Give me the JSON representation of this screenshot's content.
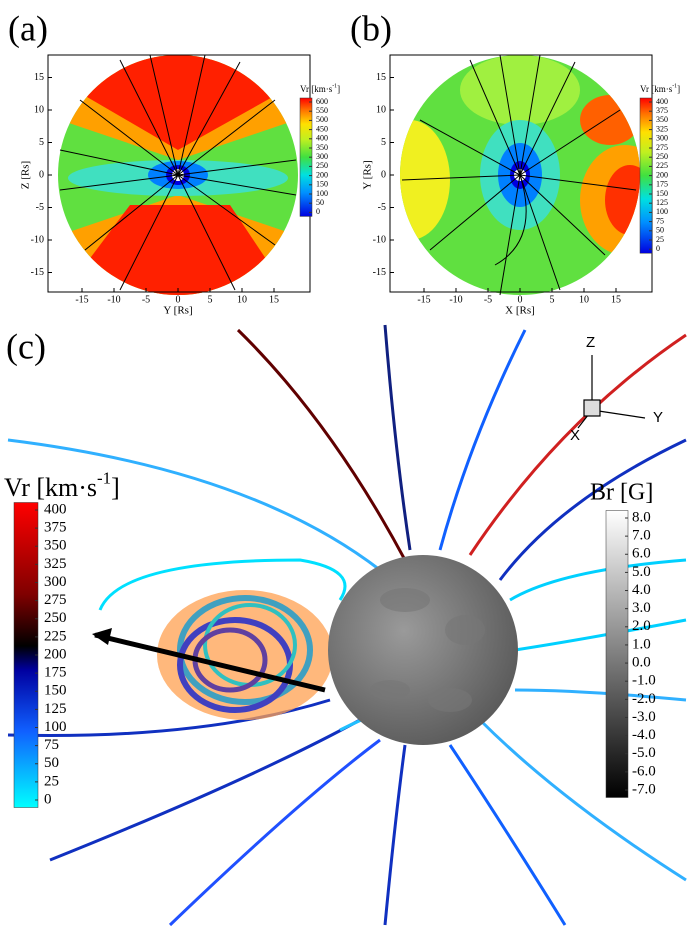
{
  "panels": [
    {
      "label": "(a)",
      "x_label": "Y [Rs]",
      "y_label": "Z [Rs]",
      "xticks": [
        -15,
        -10,
        -5,
        0,
        5,
        10,
        15
      ],
      "yticks": [
        -15,
        -10,
        -5,
        0,
        5,
        10,
        15
      ],
      "colorbar": {
        "title": "Vr [km·s",
        "title_sup": "-1",
        "title_end": "]",
        "ticks": [
          600,
          550,
          500,
          450,
          400,
          350,
          300,
          250,
          200,
          150,
          100,
          50,
          0
        ]
      }
    },
    {
      "label": "(b)",
      "x_label": "X [Rs]",
      "y_label": "Y [Rs]",
      "xticks": [
        -15,
        -10,
        -5,
        0,
        5,
        10,
        15
      ],
      "yticks": [
        -15,
        -10,
        -5,
        0,
        5,
        10,
        15
      ],
      "colorbar": {
        "title": "Vr [km·s",
        "title_sup": "-1",
        "title_end": "]",
        "ticks": [
          400,
          375,
          350,
          325,
          300,
          275,
          250,
          225,
          200,
          175,
          150,
          125,
          100,
          75,
          50,
          25,
          0
        ]
      }
    },
    {
      "label": "(c)",
      "vr_colorbar": {
        "title": "Vr [km·s",
        "title_sup": "-1",
        "title_end": "]",
        "ticks": [
          400,
          375,
          350,
          325,
          300,
          275,
          250,
          225,
          200,
          175,
          150,
          125,
          100,
          75,
          50,
          25,
          0
        ]
      },
      "br_colorbar": {
        "title": "Br [G]",
        "ticks": [
          {
            "value": 8,
            "label": "8.0"
          },
          {
            "value": 7,
            "label": "7.0"
          },
          {
            "value": 6,
            "label": "6.0"
          },
          {
            "value": 5,
            "label": "5.0"
          },
          {
            "value": 4,
            "label": "4.0"
          },
          {
            "value": 3,
            "label": "3.0"
          },
          {
            "value": 2,
            "label": "2.0"
          },
          {
            "value": 1,
            "label": "1.0"
          },
          {
            "value": 0,
            "label": "0.0"
          },
          {
            "value": -1,
            "label": "-1.0"
          },
          {
            "value": -2,
            "label": "-2.0"
          },
          {
            "value": -3,
            "label": "-3.0"
          },
          {
            "value": -4,
            "label": "-4.0"
          },
          {
            "value": -5,
            "label": "-5.0"
          },
          {
            "value": -6,
            "label": "-6.0"
          },
          {
            "value": -7,
            "label": "-7.0"
          }
        ]
      },
      "axes_labels": [
        "Z",
        "Y",
        "X"
      ]
    }
  ]
}
